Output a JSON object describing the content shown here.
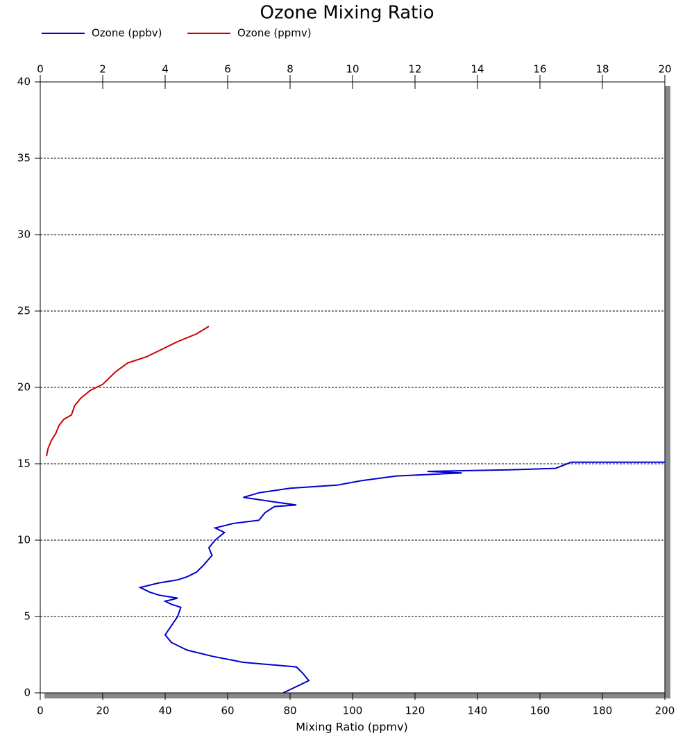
{
  "chart_data": {
    "type": "line",
    "title": "Ozone Mixing Ratio",
    "x_label": "Mixing Ratio (ppmv)",
    "xlim": [
      0,
      200
    ],
    "xticks": [
      0,
      20,
      40,
      60,
      80,
      100,
      120,
      140,
      160,
      180,
      200
    ],
    "x2lim": [
      0,
      20
    ],
    "x2ticks": [
      0,
      2,
      4,
      6,
      8,
      10,
      12,
      14,
      16,
      18,
      20
    ],
    "ylim": [
      0,
      40
    ],
    "yticks": [
      0,
      5,
      10,
      15,
      20,
      25,
      30,
      35,
      40
    ],
    "grid": true,
    "series": [
      {
        "name": "Ozone (ppbv)",
        "color": "#0000cc",
        "x": [
          77.8,
          86,
          84,
          82,
          65,
          55,
          47,
          42,
          40,
          44,
          45,
          42,
          40,
          44,
          38,
          35,
          32,
          38,
          44,
          47,
          50,
          52,
          55,
          54,
          56,
          59,
          56,
          62,
          70,
          72,
          75,
          82,
          75,
          65,
          70,
          80,
          95,
          103,
          114,
          135,
          124,
          150,
          165,
          170,
          200
        ],
        "values": [
          0,
          0.8,
          1.3,
          1.7,
          2.0,
          2.4,
          2.8,
          3.3,
          3.8,
          5.0,
          5.6,
          5.8,
          6.0,
          6.2,
          6.4,
          6.6,
          6.9,
          7.2,
          7.4,
          7.6,
          7.9,
          8.3,
          9.0,
          9.5,
          10.0,
          10.5,
          10.8,
          11.1,
          11.3,
          11.8,
          12.2,
          12.3,
          12.5,
          12.8,
          13.1,
          13.4,
          13.6,
          13.9,
          14.2,
          14.4,
          14.5,
          14.6,
          14.7,
          15.1,
          15.1
        ]
      },
      {
        "name": "Ozone (ppmv)",
        "color": "#cc0000",
        "axis": "x2",
        "x": [
          0.2,
          0.25,
          0.35,
          0.5,
          0.6,
          0.75,
          1.0,
          1.1,
          1.3,
          1.6,
          2.0,
          2.2,
          2.4,
          2.8,
          3.4,
          3.9,
          4.4,
          5.0,
          5.4
        ],
        "values": [
          15.5,
          16.0,
          16.5,
          17.0,
          17.5,
          17.9,
          18.2,
          18.8,
          19.3,
          19.8,
          20.2,
          20.6,
          21.0,
          21.6,
          22.0,
          22.5,
          23.0,
          23.5,
          24.0
        ]
      }
    ]
  }
}
